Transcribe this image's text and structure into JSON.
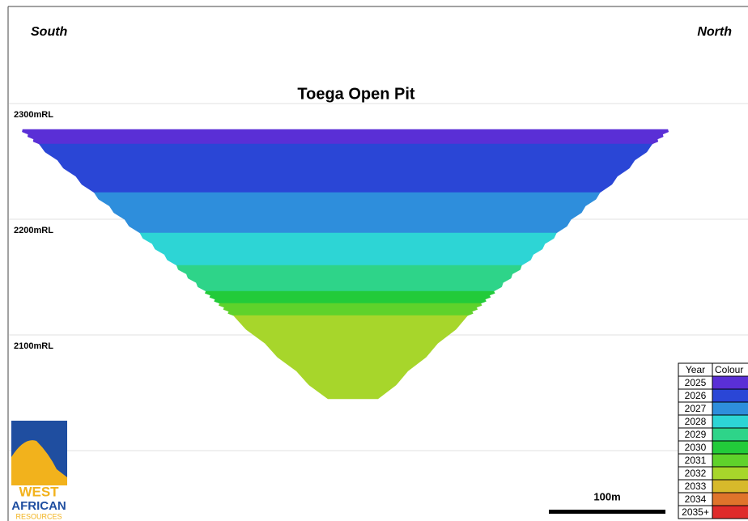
{
  "header": {
    "left": "South",
    "right": "North",
    "title": "Toega Open Pit"
  },
  "elevations": [
    "2300mRL",
    "2200mRL",
    "2100mRL"
  ],
  "legend": {
    "headers": [
      "Year",
      "Colour"
    ],
    "rows": [
      {
        "year": "2025",
        "color": "#5a2fd6"
      },
      {
        "year": "2026",
        "color": "#2a46d6"
      },
      {
        "year": "2027",
        "color": "#2e8edc"
      },
      {
        "year": "2028",
        "color": "#2dd5d5"
      },
      {
        "year": "2029",
        "color": "#2ed489"
      },
      {
        "year": "2030",
        "color": "#22cb3a"
      },
      {
        "year": "2031",
        "color": "#5fd22b"
      },
      {
        "year": "2032",
        "color": "#a7d62b"
      },
      {
        "year": "2033",
        "color": "#d7b92b"
      },
      {
        "year": "2034",
        "color": "#df742b"
      },
      {
        "year": "2035+",
        "color": "#df2b2b"
      }
    ]
  },
  "scale": "100m",
  "logo": [
    "WEST",
    "AFRICAN",
    "RESOURCES"
  ]
}
